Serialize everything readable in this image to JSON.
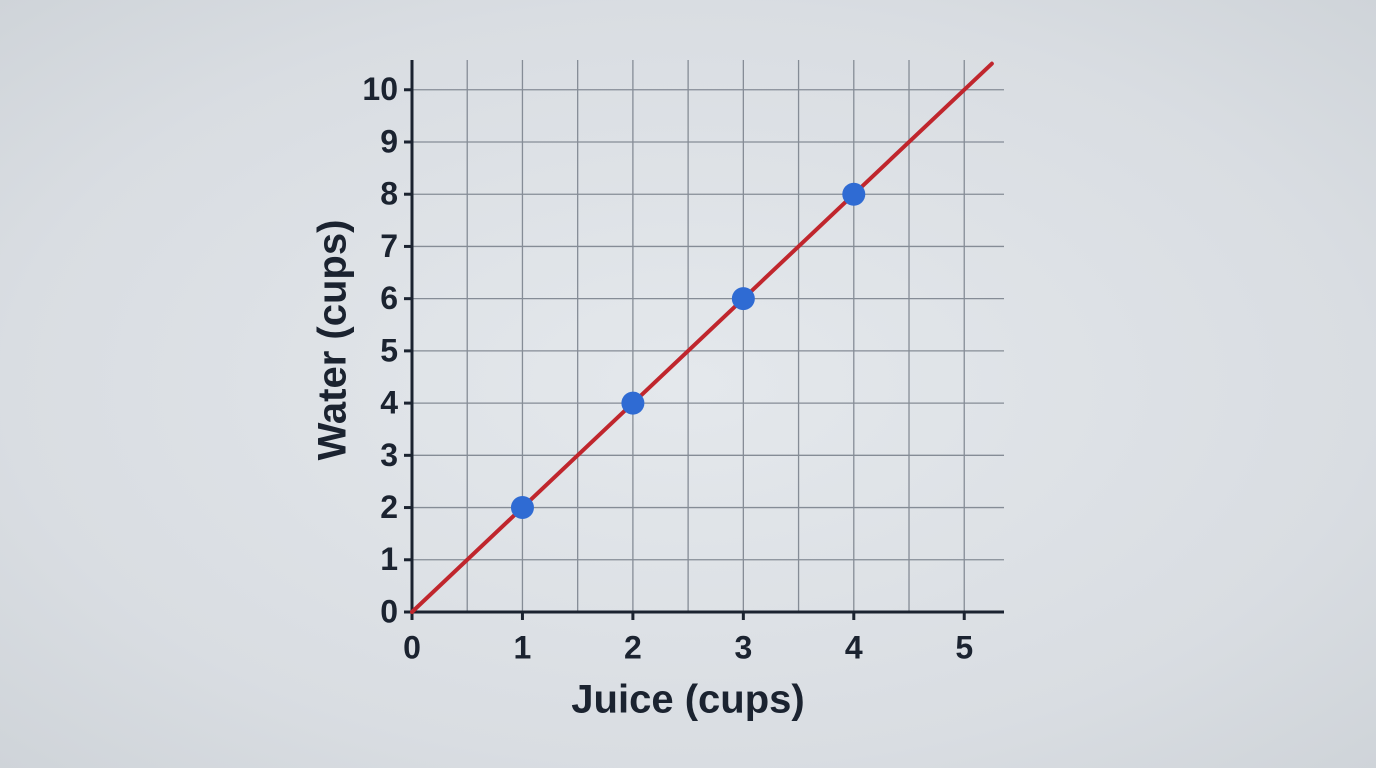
{
  "chart_data": {
    "type": "line",
    "xlabel": "Juice (cups)",
    "ylabel": "Water (cups)",
    "xlim": [
      0,
      5.36
    ],
    "ylim": [
      0,
      10.57
    ],
    "xticks": [
      0,
      1,
      2,
      3,
      4,
      5
    ],
    "yticks": [
      0,
      1,
      2,
      3,
      4,
      5,
      6,
      7,
      8,
      9,
      10
    ],
    "xminorticks": [
      0.5,
      1.5,
      2.5,
      3.5,
      4.5
    ],
    "grid": true,
    "series": [
      {
        "color": "#c0262d",
        "x": [
          0,
          5.25
        ],
        "values": [
          0,
          10.5
        ],
        "line": true,
        "markers": false
      },
      {
        "color": "#2f6bd3",
        "x": [
          1,
          2,
          3,
          4
        ],
        "values": [
          2,
          4,
          6,
          8
        ],
        "line": false,
        "markers": true
      }
    ]
  }
}
